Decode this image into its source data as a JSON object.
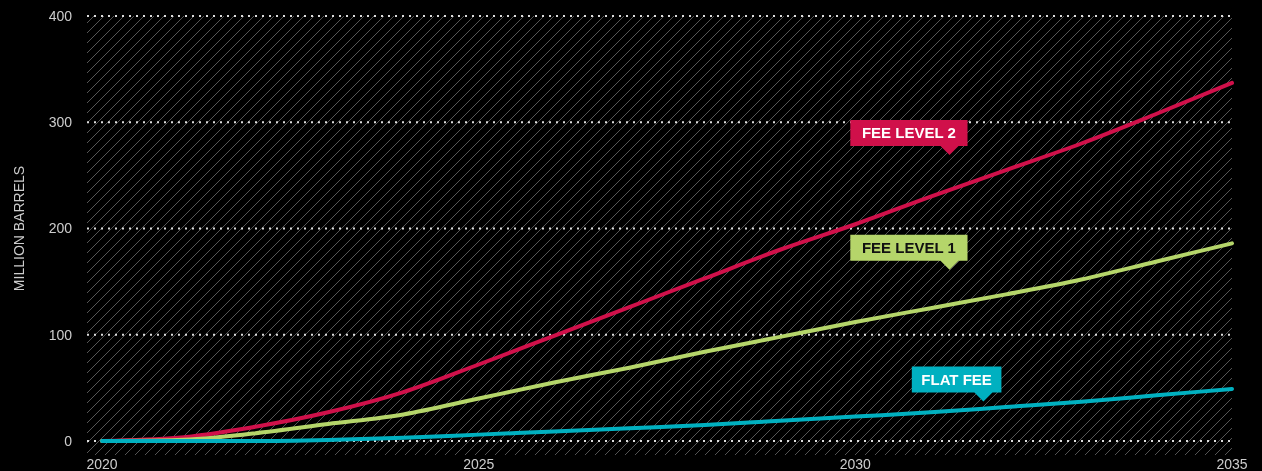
{
  "chart_data": {
    "type": "line",
    "ylabel": "MILLION BARRELS",
    "x": [
      2020,
      2021,
      2022,
      2023,
      2024,
      2025,
      2026,
      2027,
      2028,
      2029,
      2030,
      2031,
      2032,
      2033,
      2034,
      2035
    ],
    "xlim": [
      2019.8,
      2035
    ],
    "xticks": [
      2020,
      2025,
      2030,
      2035
    ],
    "ylim": [
      0,
      400
    ],
    "yticks": [
      0,
      100,
      200,
      300,
      400
    ],
    "grid": "y",
    "line_style": "solid",
    "marker": "none",
    "series": [
      {
        "name": "FEE LEVEL 2",
        "color": "#d0104a",
        "values": [
          0,
          3,
          13,
          27,
          46,
          72,
          99,
          126,
          153,
          180,
          204,
          230,
          255,
          280,
          308,
          337
        ]
      },
      {
        "name": "FEE LEVEL 1",
        "color": "#b5d56a",
        "values": [
          0,
          1,
          7,
          16,
          25,
          40,
          55,
          69,
          84,
          98,
          112,
          125,
          138,
          152,
          169,
          186
        ]
      },
      {
        "name": "FLAT FEE",
        "color": "#00b0c0",
        "values": [
          0,
          0,
          0,
          1,
          3,
          6,
          9,
          12,
          15,
          19,
          23,
          27,
          32,
          37,
          43,
          49
        ]
      }
    ]
  }
}
